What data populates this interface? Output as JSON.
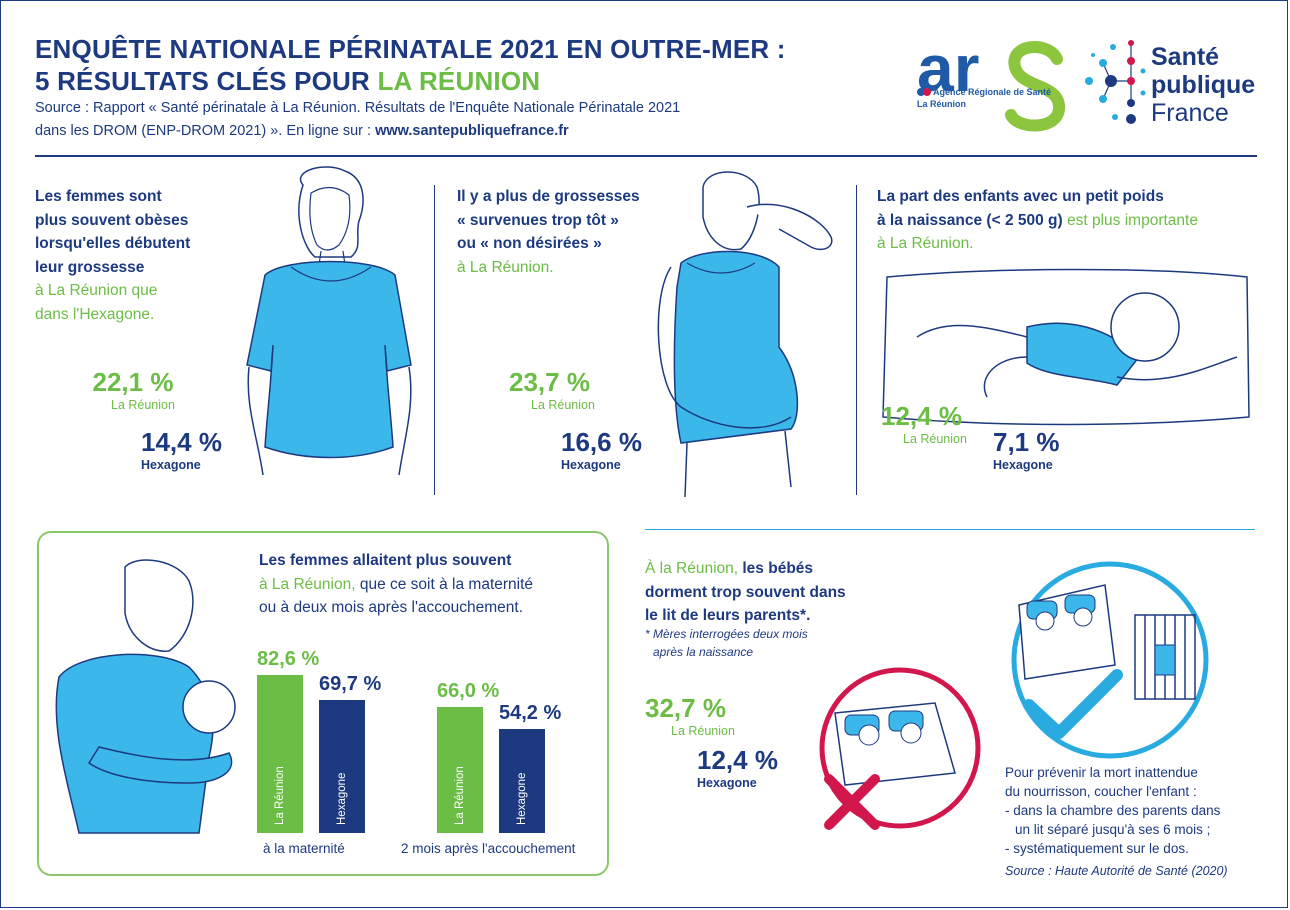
{
  "header": {
    "title_line1": "ENQUÊTE NATIONALE PÉRINATALE 2021 EN OUTRE-MER :",
    "title_line2_prefix": "5 RÉSULTATS CLÉS POUR ",
    "title_line2_highlight": "LA RÉUNION",
    "source_line1": "Source : Rapport « Santé périnatale à La Réunion. Résultats de l'Enquête Nationale Périnatale 2021",
    "source_line2_prefix": "dans les DROM (ENP-DROM 2021) ». En ligne sur : ",
    "source_url": "www.santepubliquefrance.fr"
  },
  "logos": {
    "ars_text": "ars",
    "ars_sub1": "Agence Régionale de Santé",
    "ars_sub2": "La Réunion",
    "spf_line1": "Santé",
    "spf_line2": "publique",
    "spf_line3": "France"
  },
  "colors": {
    "navy": "#1d3a80",
    "green": "#6cbd45",
    "blue": "#1f5aa6",
    "cyan": "#29abe2",
    "skin_blue": "#3bb7ea",
    "magenta": "#d2174c"
  },
  "card1": {
    "l1": "Les femmes sont",
    "l2": "plus souvent obèses",
    "l3": "lorsqu'elles débutent",
    "l4": "leur grossesse",
    "l5": "à La Réunion que",
    "l6": "dans l'Hexagone.",
    "pct_reunion": "22,1 %",
    "lbl_reunion": "La Réunion",
    "pct_hexagone": "14,4 %",
    "lbl_hexagone": "Hexagone"
  },
  "card2": {
    "l1": "Il y a plus de grossesses",
    "l2": "« survenues trop tôt »",
    "l3": "ou « non désirées »",
    "l4": "à La Réunion.",
    "pct_reunion": "23,7 %",
    "lbl_reunion": "La Réunion",
    "pct_hexagone": "16,6 %",
    "lbl_hexagone": "Hexagone"
  },
  "card3": {
    "l1": "La part des enfants avec un petit poids",
    "l2a": "à la naissance (< 2 500 g)",
    "l2b": " est plus importante",
    "l3": "à La Réunion.",
    "pct_reunion": "12,4 %",
    "lbl_reunion": "La Réunion",
    "pct_hexagone": "7,1 %",
    "lbl_hexagone": "Hexagone"
  },
  "card4": {
    "l1": "Les femmes allaitent plus souvent",
    "l2a": "à La Réunion,",
    "l2b": " que ce soit à la maternité",
    "l3": "ou à deux mois après l'accouchement.",
    "group1_label": "à la maternité",
    "group2_label": "2 mois après l'accouchement",
    "bar_label_reunion": "La Réunion",
    "bar_label_hexagone": "Hexagone"
  },
  "chart_data": {
    "type": "bar",
    "categories": [
      "à la maternité",
      "2 mois après l'accouchement"
    ],
    "series": [
      {
        "name": "La Réunion",
        "values": [
          82.6,
          66.0
        ],
        "labels": [
          "82,6 %",
          "66,0 %"
        ],
        "color": "#6cbd45"
      },
      {
        "name": "Hexagone",
        "values": [
          69.7,
          54.2
        ],
        "labels": [
          "69,7 %",
          "54,2 %"
        ],
        "color": "#1d3a80"
      }
    ]
  },
  "card5": {
    "l1a": "À la Réunion, ",
    "l1b": "les bébés",
    "l2": "dorment trop souvent dans",
    "l3": "le lit de leurs parents*.",
    "note1": "* Mères interrogées deux mois",
    "note2": "après la naissance",
    "pct_reunion": "32,7 %",
    "lbl_reunion": "La Réunion",
    "pct_hexagone": "12,4 %",
    "lbl_hexagone": "Hexagone",
    "advice1": "Pour prévenir la mort inattendue",
    "advice2": "du nourrisson, coucher l'enfant :",
    "advice3": "- dans la chambre des parents dans",
    "advice4": "un lit séparé jusqu'à ses 6 mois ;",
    "advice5": "- systématiquement sur le dos.",
    "advice_source": "Source : Haute Autorité de Santé (2020)"
  }
}
